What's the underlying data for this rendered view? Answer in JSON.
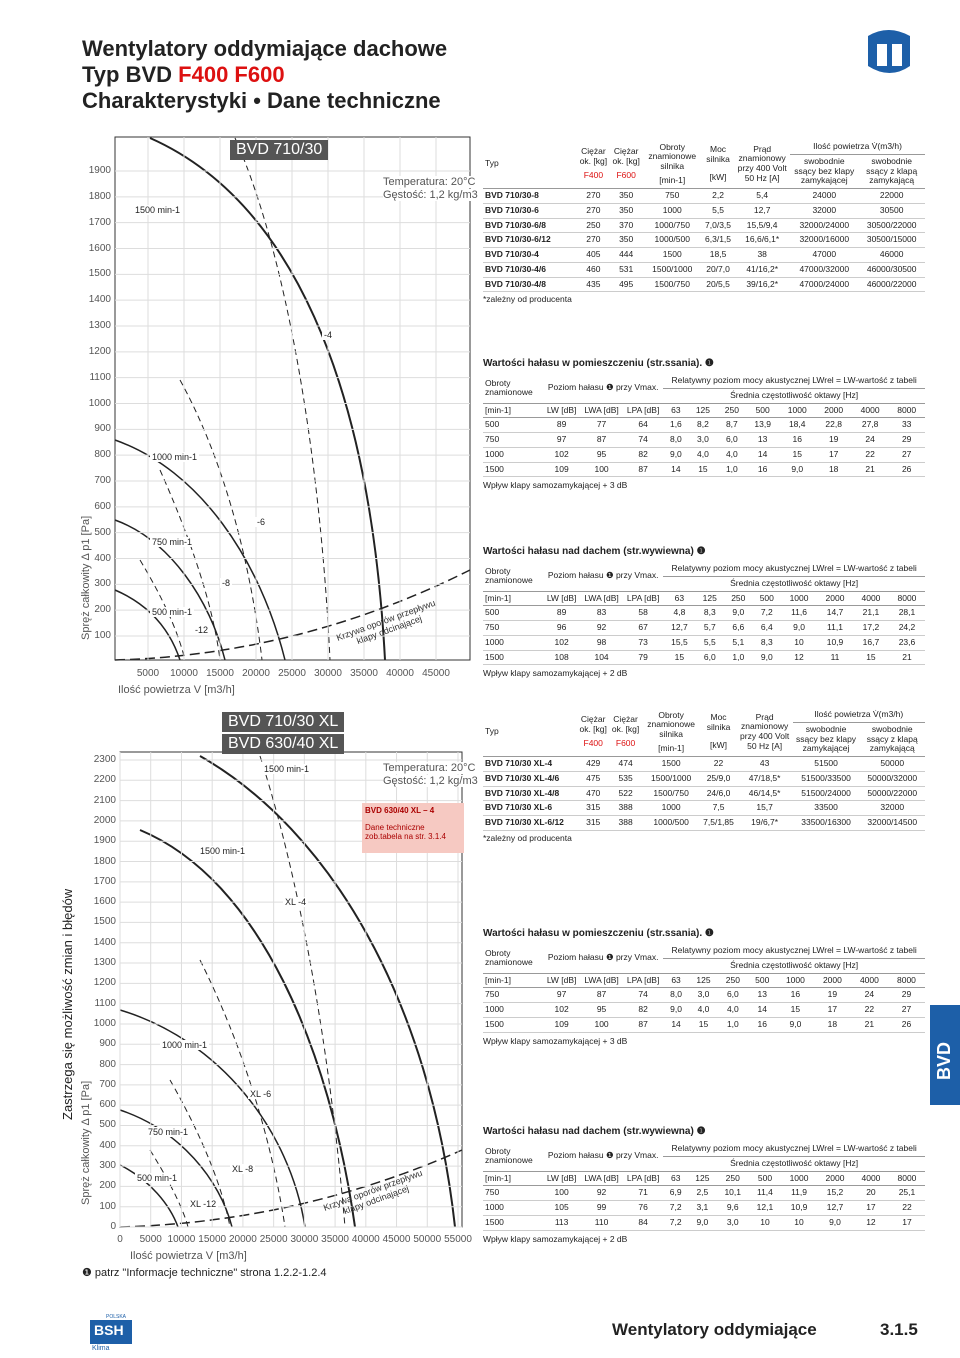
{
  "header": {
    "line1": "Wentylatory oddymiające dachowe",
    "line2a": "Typ BVD ",
    "line2b": "F400 F600",
    "line3": "Charakterystyki • Dane techniczne"
  },
  "perf_head": {
    "typ": "Typ",
    "weight": "Ciężar ok. [kg]",
    "f400": "F400",
    "f600": "F600",
    "rpm": "Obroty znamionowe silnika",
    "rpm_unit": "[min-1]",
    "power": "Moc silnika",
    "power_unit": "[kW]",
    "current": "Prąd znamionowy przy 400 Volt 50 Hz [A]",
    "air": "Ilość powietrza V̇(m3/h)",
    "air1": "swobodnie ssący bez klapy zamykającej",
    "air2": "swobodnie ssący z klapą zamykającą"
  },
  "noise_head": {
    "rpm": "Obroty znamionowe",
    "rpm_unit": "[min-1]",
    "level": "Poziom hałasu ❶ przy Vmax.",
    "lw": "LW [dB]",
    "lwa": "LWA [dB]",
    "lpa": "LPA [dB]",
    "rel": "Relatywny poziom mocy akustycznej LWrel = LW-wartość z tabeli",
    "freq": "Średnia częstotliwość oktawy [Hz]",
    "bands": [
      63,
      125,
      250,
      500,
      1000,
      2000,
      4000,
      8000
    ]
  },
  "sections": [
    {
      "chart": {
        "title": "BVD 710/30",
        "temp": "Temperatura: 20°C",
        "density": "Gęstość: 1,2 kg/m3",
        "yticks": [
          1900,
          1800,
          1700,
          1600,
          1500,
          1400,
          1300,
          1200,
          1100,
          1000,
          900,
          800,
          700,
          600,
          500,
          400,
          300,
          200,
          100
        ],
        "xticks": [
          5000,
          10000,
          15000,
          20000,
          25000,
          30000,
          35000,
          40000,
          45000
        ],
        "ylabel": "Spręż całkowity Δ p1 [Pa]",
        "xlabel": "Ilość powietrza V [m3/h]",
        "labels": [
          "1500 min-1",
          "1000 min-1",
          "750 min-1",
          "500 min-1",
          "-4",
          "-6",
          "-8",
          "-12"
        ],
        "curve": "Krzywa oporów przepływu klapy odcinającej"
      },
      "perf": {
        "rows": [
          [
            "BVD 710/30-8",
            "270",
            "350",
            "750",
            "2,2",
            "5,4",
            "24000",
            "22000"
          ],
          [
            "BVD 710/30-6",
            "270",
            "350",
            "1000",
            "5,5",
            "12,7",
            "32000",
            "30500"
          ],
          [
            "BVD 710/30-6/8",
            "250",
            "370",
            "1000/750",
            "7,0/3,5",
            "15,5/9,4",
            "32000/24000",
            "30500/22000"
          ],
          [
            "BVD 710/30-6/12",
            "270",
            "350",
            "1000/500",
            "6,3/1,5",
            "16,6/6,1*",
            "32000/16000",
            "30500/15000"
          ],
          [
            "BVD 710/30-4",
            "405",
            "444",
            "1500",
            "18,5",
            "38",
            "47000",
            "46000"
          ],
          [
            "BVD 710/30-4/6",
            "460",
            "531",
            "1500/1000",
            "20/7,0",
            "41/16,2*",
            "47000/32000",
            "46000/30500"
          ],
          [
            "BVD 710/30-4/8",
            "435",
            "495",
            "1500/750",
            "20/5,5",
            "39/16,2*",
            "47000/24000",
            "46000/22000"
          ]
        ],
        "note": "*zależny od producenta"
      },
      "room": {
        "title": "Wartości hałasu w pomieszczeniu (str.ssania). ❶",
        "rows": [
          [
            "500",
            "89",
            "77",
            "64",
            "1,6",
            "8,2",
            "8,7",
            "13,9",
            "18,4",
            "22,8",
            "27,8",
            "33"
          ],
          [
            "750",
            "97",
            "87",
            "74",
            "8,0",
            "3,0",
            "6,0",
            "13",
            "16",
            "19",
            "24",
            "29"
          ],
          [
            "1000",
            "102",
            "95",
            "82",
            "9,0",
            "4,0",
            "4,0",
            "14",
            "15",
            "17",
            "22",
            "27"
          ],
          [
            "1500",
            "109",
            "100",
            "87",
            "14",
            "15",
            "1,0",
            "16",
            "9,0",
            "18",
            "21",
            "26"
          ]
        ],
        "note": "Wpływ klapy samozamykającej + 3 dB"
      },
      "roof": {
        "title": "Wartości hałasu nad dachem (str.wywiewna) ❶",
        "rows": [
          [
            "500",
            "89",
            "83",
            "58",
            "4,8",
            "8,3",
            "9,0",
            "7,2",
            "11,6",
            "14,7",
            "21,1",
            "28,1"
          ],
          [
            "750",
            "96",
            "92",
            "67",
            "12,7",
            "5,7",
            "6,6",
            "6,4",
            "9,0",
            "11,1",
            "17,2",
            "24,2"
          ],
          [
            "1000",
            "102",
            "98",
            "73",
            "15,5",
            "5,5",
            "5,1",
            "8,3",
            "10",
            "10,9",
            "16,7",
            "23,6"
          ],
          [
            "1500",
            "108",
            "104",
            "79",
            "15",
            "6,0",
            "1,0",
            "9,0",
            "12",
            "11",
            "15",
            "21"
          ]
        ],
        "note": "Wpływ klapy samozamykającej + 2 dB"
      }
    },
    {
      "chart": {
        "title": "BVD 710/30 XL",
        "title2": "BVD 630/40 XL",
        "temp": "Temperatura: 20°C",
        "density": "Gęstość: 1,2 kg/m3",
        "yticks": [
          2300,
          2200,
          2100,
          2000,
          1900,
          1800,
          1700,
          1600,
          1500,
          1400,
          1300,
          1200,
          1100,
          1000,
          900,
          800,
          700,
          600,
          500,
          400,
          300,
          200,
          100,
          0
        ],
        "xticks": [
          0,
          5000,
          10000,
          15000,
          20000,
          25000,
          30000,
          35000,
          40000,
          45000,
          50000,
          55000
        ],
        "ylabel": "Spręż całkowity Δ p1 [Pa]",
        "xlabel": "Ilość powietrza V [m3/h]",
        "labels": [
          "1500 min-1",
          "1500 min-1",
          "1000 min-1",
          "750 min-1",
          "500 min-1",
          "XL -4",
          "XL -6",
          "XL -8",
          "XL -12"
        ],
        "box1": "BVD 630/40 XL – 4",
        "box2": "Dane techniczne zob.tabela na str. 3.1.4",
        "curve": "Krzywa oporów przepływu klapy odcinającej"
      },
      "perf": {
        "rows": [
          [
            "BVD 710/30 XL-4",
            "429",
            "474",
            "1500",
            "22",
            "43",
            "51500",
            "50000"
          ],
          [
            "BVD 710/30 XL-4/6",
            "475",
            "535",
            "1500/1000",
            "25/9,0",
            "47/18,5*",
            "51500/33500",
            "50000/32000"
          ],
          [
            "BVD 710/30 XL-4/8",
            "470",
            "522",
            "1500/750",
            "24/6,0",
            "46/14,5*",
            "51500/24000",
            "50000/22000"
          ],
          [
            "BVD 710/30 XL-6",
            "315",
            "388",
            "1000",
            "7,5",
            "15,7",
            "33500",
            "32000"
          ],
          [
            "BVD 710/30 XL-6/12",
            "315",
            "388",
            "1000/500",
            "7,5/1,85",
            "19/6,7*",
            "33500/16300",
            "32000/14500"
          ]
        ],
        "note": "*zależny od producenta"
      },
      "room": {
        "title": "Wartości hałasu w pomieszczeniu (str.ssania). ❶",
        "rows": [
          [
            "750",
            "97",
            "87",
            "74",
            "8,0",
            "3,0",
            "6,0",
            "13",
            "16",
            "19",
            "24",
            "29"
          ],
          [
            "1000",
            "102",
            "95",
            "82",
            "9,0",
            "4,0",
            "4,0",
            "14",
            "15",
            "17",
            "22",
            "27"
          ],
          [
            "1500",
            "109",
            "100",
            "87",
            "14",
            "15",
            "1,0",
            "16",
            "9,0",
            "18",
            "21",
            "26"
          ]
        ],
        "note": "Wpływ klapy samozamykającej + 3 dB"
      },
      "roof": {
        "title": "Wartości hałasu nad dachem (str.wywiewna) ❶",
        "rows": [
          [
            "750",
            "100",
            "92",
            "71",
            "6,9",
            "2,5",
            "10,1",
            "11,4",
            "11,9",
            "15,2",
            "20",
            "25,1"
          ],
          [
            "1000",
            "105",
            "99",
            "76",
            "7,2",
            "3,1",
            "9,6",
            "12,1",
            "10,9",
            "12,7",
            "17",
            "22"
          ],
          [
            "1500",
            "113",
            "110",
            "84",
            "7,2",
            "9,0",
            "3,0",
            "10",
            "10",
            "9,0",
            "12",
            "17"
          ]
        ],
        "note": "Wpływ klapy samozamykającej + 2 dB"
      }
    }
  ],
  "footnote": "❶ patrz \"Informacje techniczne\" strona 1.2.2-1.2.4",
  "side": "Zastrzega się możliwość zmian i błędów",
  "tab": "BVD",
  "footer": {
    "text": "Wentylatory oddymiające",
    "page": "3.1.5"
  },
  "logo": {
    "name": "BSH",
    "country": "POLSKA",
    "sub": "Klima"
  }
}
